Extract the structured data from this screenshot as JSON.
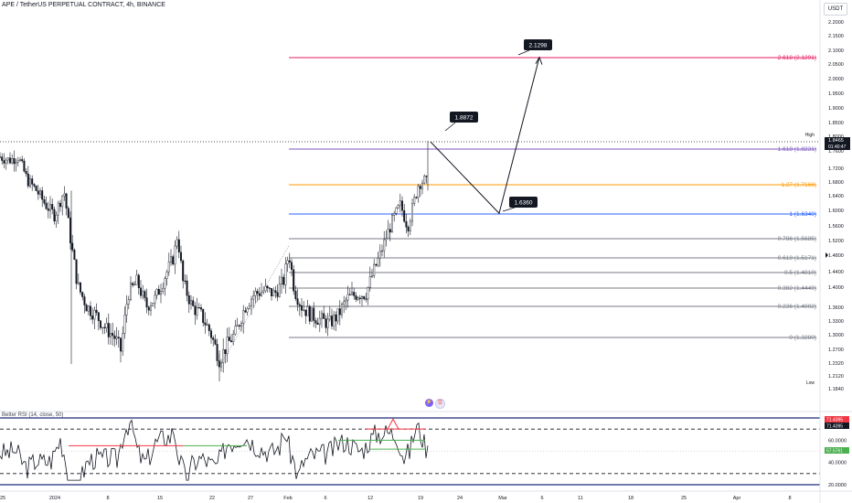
{
  "header": {
    "title": "APE / TetherUS PERPETUAL CONTRACT, 4h, BINANCE",
    "currency": "USDT"
  },
  "colors": {
    "up": "#26a69a",
    "candle": "#131722",
    "fib_618": "#e91e63",
    "fib_1618": "#7e57c2",
    "fib_127": "#ff9800",
    "fib_1": "#2962ff",
    "fib_grey": "#787b86",
    "rsi_band": "#1e2a78",
    "rsi_line": "#131722",
    "rsi_red": "#f23645",
    "rsi_green": "#4caf50"
  },
  "chart_data": {
    "type": "candlestick",
    "symbol": "APE / TetherUS PERPETUAL CONTRACT",
    "interval": "4h",
    "exchange": "BINANCE",
    "y_axis_ticks": [
      "2.2000",
      "2.1500",
      "2.1000",
      "2.0500",
      "2.0000",
      "1.9500",
      "1.9000",
      "1.8500",
      "1.8000",
      "1.7600",
      "1.7200",
      "1.6800",
      "1.6400",
      "1.6000",
      "1.5600",
      "1.5200",
      "1.4800",
      "1.4400",
      "1.4000",
      "1.3600",
      "1.3300",
      "1.3000",
      "1.2700",
      "1.2320",
      "1.2120",
      "1.1840"
    ],
    "y_axis_values": [
      2.2,
      2.15,
      2.1,
      2.05,
      2.0,
      1.95,
      1.9,
      1.85,
      1.8,
      1.76,
      1.72,
      1.68,
      1.64,
      1.6,
      1.56,
      1.52,
      1.48,
      1.44,
      1.4,
      1.36,
      1.33,
      1.3,
      1.27,
      1.232,
      1.212,
      1.184
    ],
    "x_axis_ticks": [
      "25",
      "2024",
      "8",
      "15",
      "22",
      "27",
      "Feb",
      "6",
      "12",
      "19",
      "24",
      "Mar",
      "6",
      "11",
      "18",
      "25",
      "Apr",
      "8"
    ],
    "current_price": "1.8465",
    "countdown": "01:40:47",
    "high_label": "High",
    "high_value": "1.8500",
    "low_label": "Low",
    "low_value": "1.2320",
    "fib_levels": [
      {
        "ratio": "2.618",
        "label": "2.618 (2.1291)",
        "value": 2.1291,
        "color": "#e91e63"
      },
      {
        "ratio": "1.618",
        "label": "1.618 (1.8231)",
        "value": 1.8231,
        "color": "#7e57c2"
      },
      {
        "ratio": "1.27",
        "label": "1.27 (1.7166)",
        "value": 1.7166,
        "color": "#ff9800"
      },
      {
        "ratio": "1",
        "label": "1 (1.6340)",
        "value": 1.634,
        "color": "#2962ff"
      },
      {
        "ratio": "0.786",
        "label": "0.786 (1.5685)",
        "value": 1.5685,
        "color": "#787b86"
      },
      {
        "ratio": "0.618",
        "label": "0.618 (1.5171)",
        "value": 1.5171,
        "color": "#787b86"
      },
      {
        "ratio": "0.5",
        "label": "0.5 (1.4810)",
        "value": 1.481,
        "color": "#787b86"
      },
      {
        "ratio": "0.382",
        "label": "0.382 (1.4449)",
        "value": 1.4449,
        "color": "#787b86"
      },
      {
        "ratio": "0.236",
        "label": "0.236 (1.4002)",
        "value": 1.4002,
        "color": "#787b86"
      },
      {
        "ratio": "0",
        "label": "0 (1.3280)",
        "value": 1.328,
        "color": "#787b86"
      }
    ],
    "projection": [
      {
        "label": "1.8872",
        "value": 1.8872
      },
      {
        "label": "1.6360",
        "value": 1.636
      },
      {
        "label": "2.1298",
        "value": 2.1298
      }
    ],
    "rsi": {
      "title": "Better RSI (14, close, 50)",
      "ticks": [
        "60.0000",
        "40.0000",
        "20.0000"
      ],
      "tick_values": [
        60,
        40,
        20
      ],
      "badges": [
        "71.4395",
        "71.4395",
        "57.5761"
      ],
      "upper_band": 80,
      "lower_band": 20,
      "overbought": 70,
      "oversold": 30,
      "midline": 50
    }
  }
}
